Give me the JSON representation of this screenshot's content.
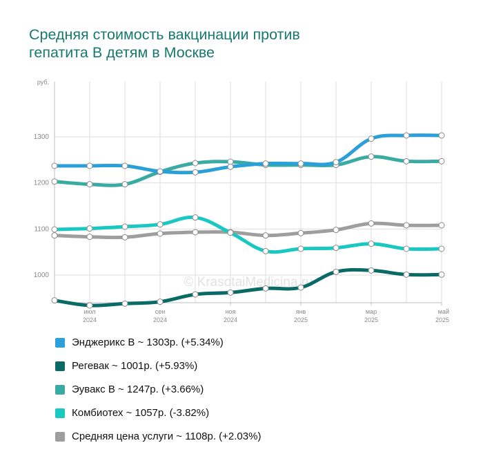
{
  "title_lines": [
    "Средняя стоимость вакцинации против",
    "гепатита В детям в Москве"
  ],
  "watermark": "© KrasotaiMedicina.ru",
  "chart_data": {
    "type": "line",
    "title": "Средняя стоимость вакцинации против гепатита В детям в Москве",
    "ylabel": "руб.",
    "ylim": [
      940,
      1420
    ],
    "yticks": [
      1000,
      1100,
      1200,
      1300
    ],
    "grid": true,
    "legend_position": "bottom",
    "x": [
      "2024-06",
      "2024-07",
      "2024-08",
      "2024-09",
      "2024-10",
      "2024-11",
      "2024-12",
      "2025-01",
      "2025-02",
      "2025-03",
      "2025-04",
      "2025-05"
    ],
    "x_ticks": [
      {
        "index": 1,
        "month": "июл",
        "year": "2024"
      },
      {
        "index": 3,
        "month": "сен",
        "year": "2024"
      },
      {
        "index": 5,
        "month": "ноя",
        "year": "2024"
      },
      {
        "index": 7,
        "month": "янв",
        "year": "2025"
      },
      {
        "index": 9,
        "month": "мар",
        "year": "2025"
      },
      {
        "index": 11,
        "month": "май",
        "year": "2025"
      }
    ],
    "series": [
      {
        "name": "Энджерикс В",
        "color": "#2a9fd8",
        "values": [
          1237,
          1237,
          1237,
          1225,
          1223,
          1235,
          1242,
          1242,
          1245,
          1296,
          1303,
          1303
        ],
        "legend": "Энджерикс В ~ 1303р. (+5.34%)"
      },
      {
        "name": "Регевак",
        "color": "#0a6b66",
        "values": [
          945,
          934,
          938,
          942,
          958,
          962,
          971,
          973,
          1007,
          1010,
          1001,
          1001
        ],
        "legend": "Регевак ~ 1001р. (+5.93%)"
      },
      {
        "name": "Эувакс В",
        "color": "#3aaba3",
        "values": [
          1203,
          1197,
          1197,
          1224,
          1243,
          1246,
          1239,
          1239,
          1239,
          1257,
          1247,
          1247
        ],
        "legend": "Эувакс В ~ 1247р. (+3.66%)"
      },
      {
        "name": "Комбиотех",
        "color": "#1ac8c2",
        "values": [
          1099,
          1101,
          1105,
          1110,
          1125,
          1092,
          1052,
          1057,
          1059,
          1068,
          1057,
          1057
        ],
        "legend": "Комбиотех ~ 1057р. (-3.82%)"
      },
      {
        "name": "Средняя цена услуги",
        "color": "#9e9e9e",
        "values": [
          1086,
          1083,
          1082,
          1090,
          1093,
          1093,
          1086,
          1091,
          1098,
          1112,
          1108,
          1108
        ],
        "legend": "Средняя цена услуги ~ 1108р. (+2.03%)"
      }
    ]
  }
}
